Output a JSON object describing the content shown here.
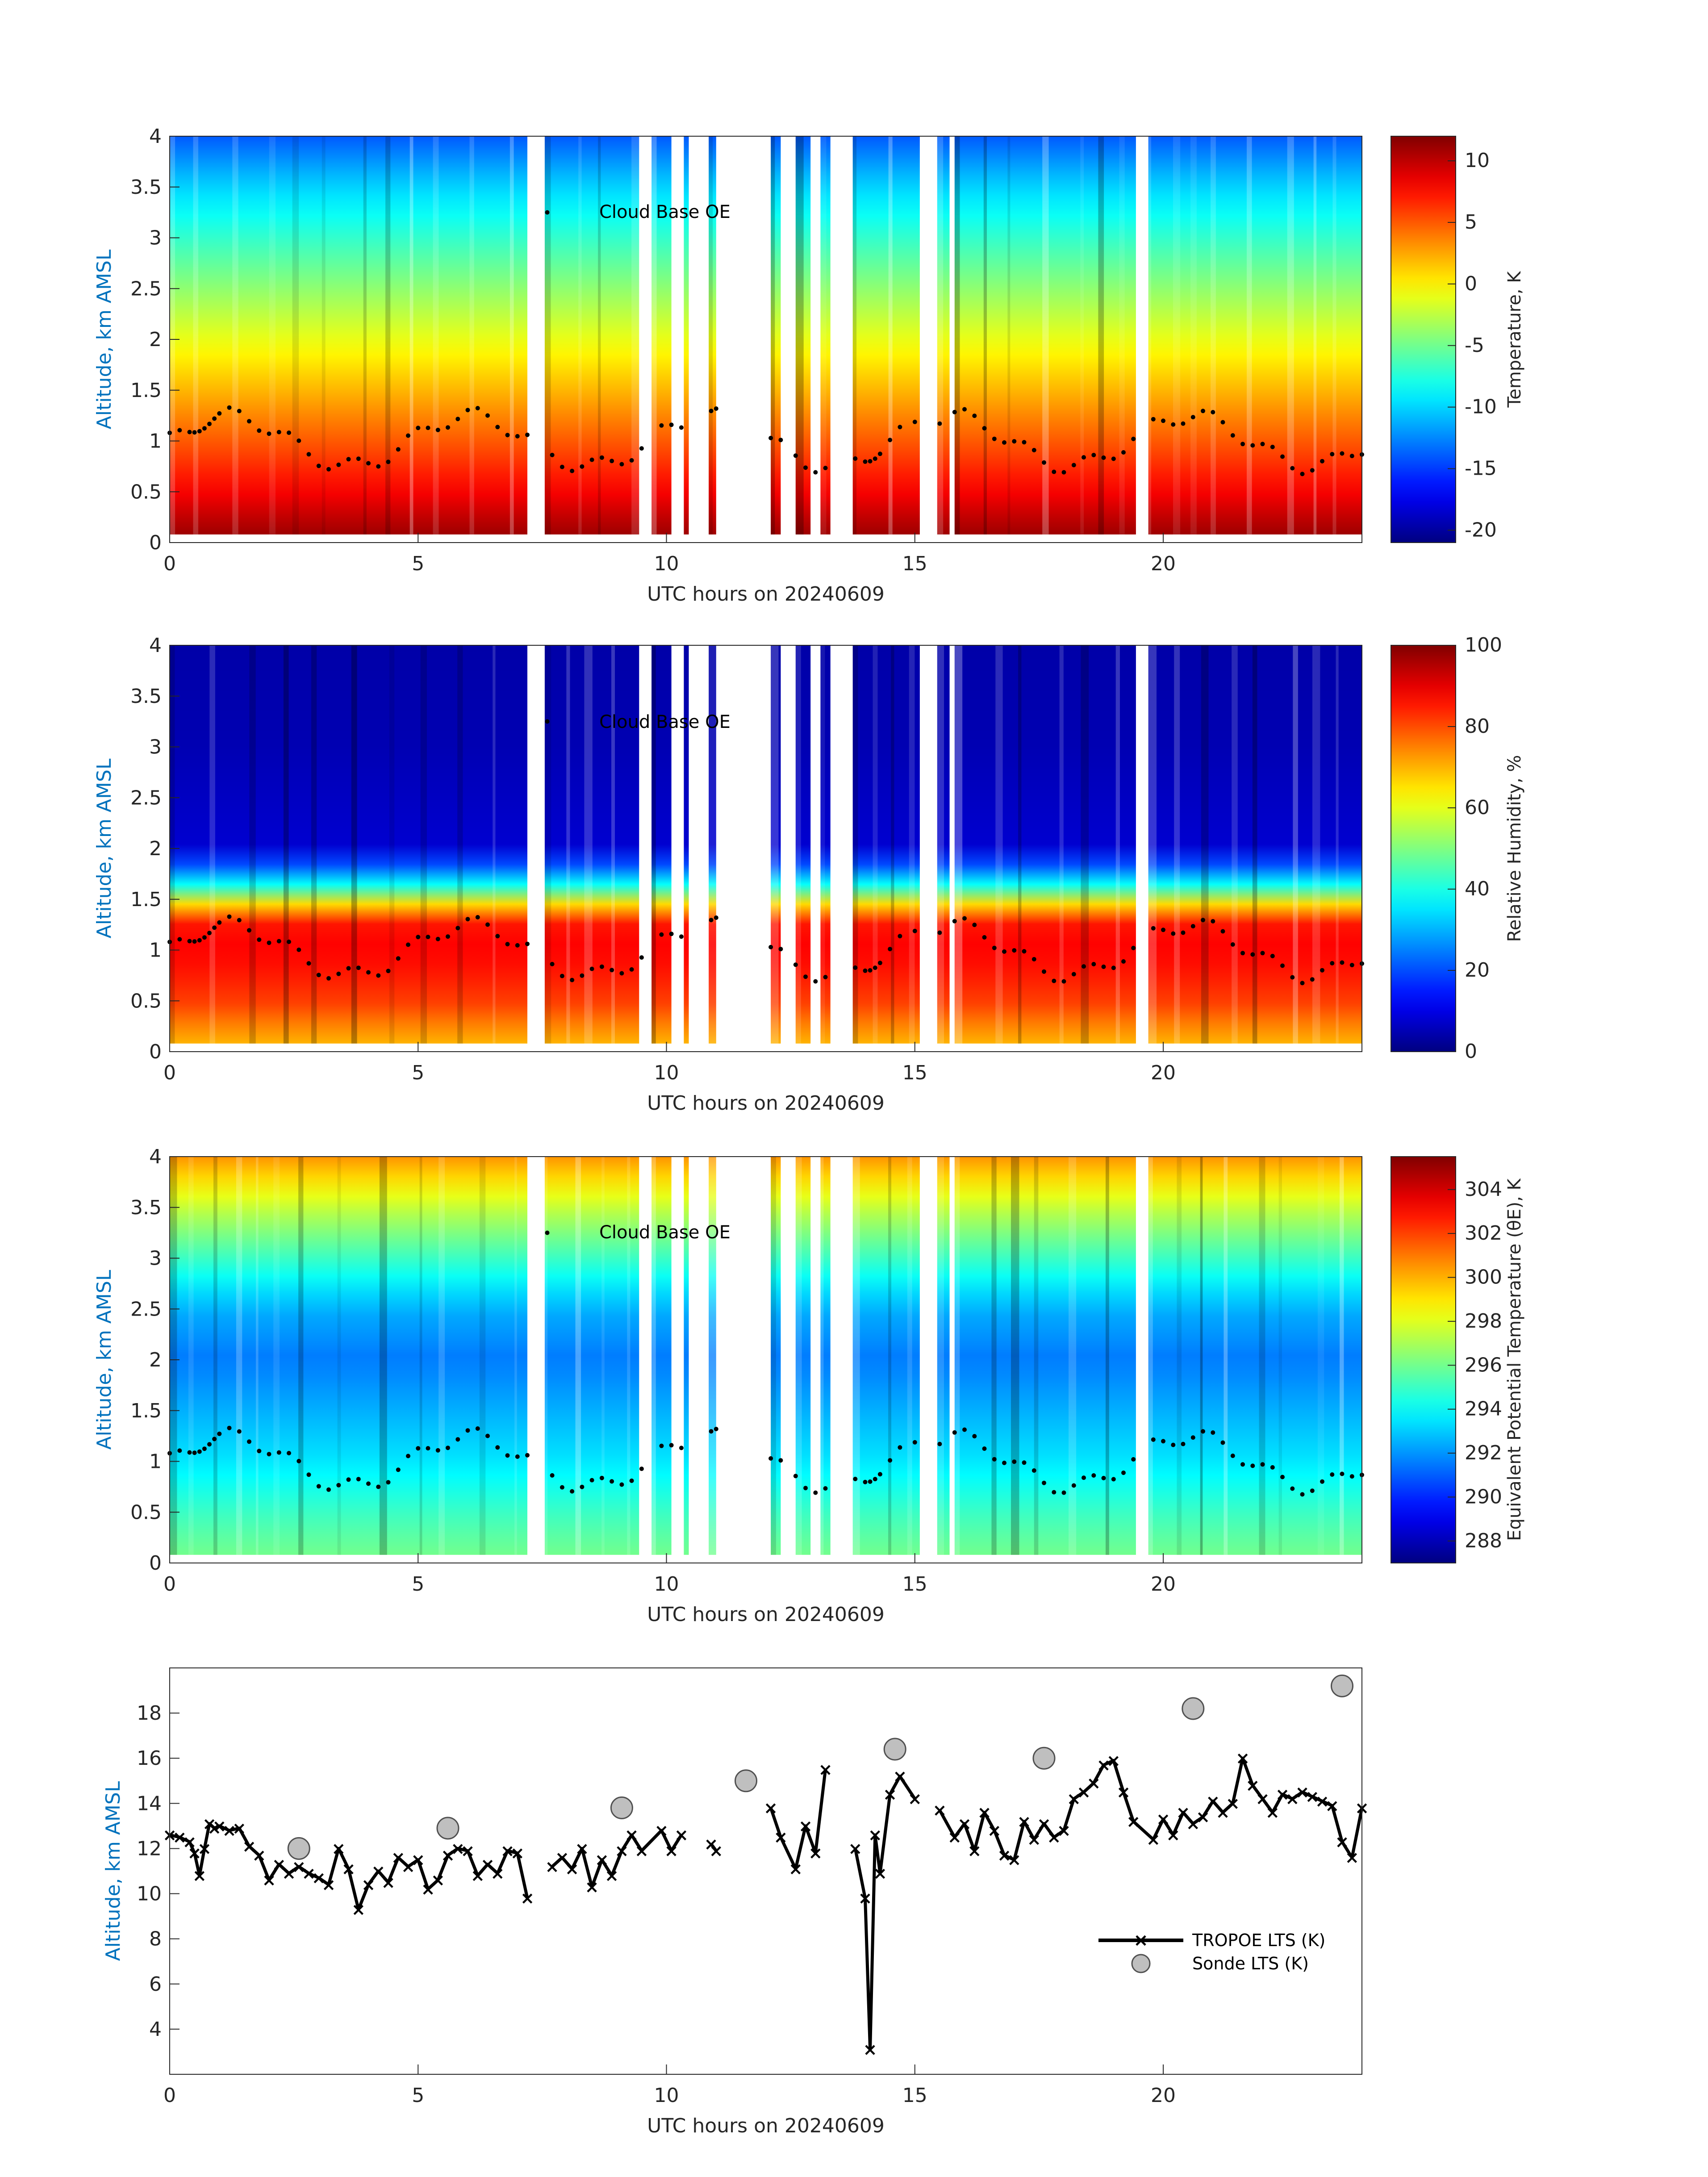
{
  "page": {
    "background": "#ffffff"
  },
  "colors": {
    "y_axis_label": "#0072bd",
    "x_axis_label": "#262626",
    "axis": "#262626",
    "lts_line": "#000000",
    "sonde_fill": "#bfbfbf",
    "sonde_edge": "#505050",
    "cloud_base_points": "#000000"
  },
  "chart_data": [
    {
      "id": "temperature",
      "type": "heatmap",
      "x_name": "UTC hours",
      "xlabel": "UTC hours on 20240609",
      "ylabel": "Altitude, km AMSL",
      "xlim": [
        0,
        24
      ],
      "ylim": [
        0,
        4
      ],
      "xticks": [
        0,
        5,
        10,
        15,
        20
      ],
      "yticks": [
        0,
        0.5,
        1,
        1.5,
        2,
        2.5,
        3,
        3.5,
        4
      ],
      "colormap": "jet",
      "colorbar": {
        "label": "Temperature, K",
        "range": [
          -21,
          12
        ],
        "ticks": [
          -20,
          -15,
          -10,
          -5,
          0,
          5,
          10
        ]
      },
      "profile": {
        "z": [
          0.1,
          0.5,
          1.0,
          1.5,
          2.0,
          2.5,
          3.0,
          3.5,
          4.0
        ],
        "values": [
          11,
          8,
          5,
          2,
          -1,
          -4,
          -7,
          -10,
          -14
        ]
      },
      "annotation": "Cloud Base OE"
    },
    {
      "id": "relative-humidity",
      "type": "heatmap",
      "xlabel": "UTC hours on 20240609",
      "ylabel": "Altitude, km AMSL",
      "xlim": [
        0,
        24
      ],
      "ylim": [
        0,
        4
      ],
      "xticks": [
        0,
        5,
        10,
        15,
        20
      ],
      "yticks": [
        0,
        0.5,
        1,
        1.5,
        2,
        2.5,
        3,
        3.5,
        4
      ],
      "colormap": "jet",
      "colorbar": {
        "label": "Relative Humidity, %",
        "range": [
          0,
          100
        ],
        "ticks": [
          0,
          20,
          40,
          60,
          80,
          100
        ]
      },
      "profile": {
        "z": [
          0.1,
          0.5,
          1.0,
          1.3,
          1.5,
          1.7,
          2.0,
          3.0,
          4.0
        ],
        "values": [
          70,
          82,
          88,
          85,
          60,
          30,
          8,
          5,
          4
        ]
      },
      "annotation": "Cloud Base OE"
    },
    {
      "id": "equivalent-potential-temperature",
      "type": "heatmap",
      "xlabel": "UTC hours on 20240609",
      "ylabel": "Altitude, km AMSL",
      "xlim": [
        0,
        24
      ],
      "ylim": [
        0,
        4
      ],
      "xticks": [
        0,
        5,
        10,
        15,
        20
      ],
      "yticks": [
        0,
        0.5,
        1,
        1.5,
        2,
        2.5,
        3,
        3.5,
        4
      ],
      "colormap": "jet",
      "colorbar": {
        "label": "Equivalent Potential Temperature (θE), K",
        "range": [
          287,
          305.5
        ],
        "ticks": [
          288,
          290,
          292,
          294,
          296,
          298,
          300,
          302,
          304
        ]
      },
      "profile": {
        "z": [
          0.1,
          0.5,
          1.0,
          1.5,
          2.0,
          2.5,
          3.0,
          3.5,
          4.0
        ],
        "values": [
          296,
          295,
          293.5,
          292.5,
          291.5,
          292.5,
          295,
          297.5,
          300.5
        ]
      },
      "annotation": "Cloud Base OE"
    },
    {
      "id": "lts",
      "type": "line",
      "xlabel": "UTC hours on 20240609",
      "ylabel": "Altitude, km AMSL",
      "xlim": [
        0,
        24
      ],
      "ylim": [
        2,
        20
      ],
      "xticks": [
        0,
        5,
        10,
        15,
        20
      ],
      "yticks": [
        4,
        6,
        8,
        10,
        12,
        14,
        16,
        18
      ],
      "legend_position": "bottom-right",
      "series": [
        {
          "name": "TROPOE LTS (K)",
          "marker": "x",
          "x": [
            0.0,
            0.2,
            0.4,
            0.5,
            0.6,
            0.7,
            0.8,
            0.9,
            1.0,
            1.2,
            1.4,
            1.6,
            1.8,
            2.0,
            2.2,
            2.4,
            2.6,
            2.8,
            3.0,
            3.2,
            3.4,
            3.6,
            3.8,
            4.0,
            4.2,
            4.4,
            4.6,
            4.8,
            5.0,
            5.2,
            5.4,
            5.6,
            5.8,
            6.0,
            6.2,
            6.4,
            6.6,
            6.8,
            7.0,
            7.2,
            7.7,
            7.9,
            8.1,
            8.3,
            8.5,
            8.7,
            8.9,
            9.1,
            9.3,
            9.5,
            9.9,
            10.1,
            10.3,
            10.9,
            11.0,
            12.1,
            12.3,
            12.6,
            12.8,
            13.0,
            13.2,
            13.8,
            14.0,
            14.1,
            14.2,
            14.3,
            14.5,
            14.7,
            15.0,
            15.5,
            15.8,
            16.0,
            16.2,
            16.4,
            16.6,
            16.8,
            17.0,
            17.2,
            17.4,
            17.6,
            17.8,
            18.0,
            18.2,
            18.4,
            18.6,
            18.8,
            19.0,
            19.2,
            19.4,
            19.8,
            20.0,
            20.2,
            20.4,
            20.6,
            20.8,
            21.0,
            21.2,
            21.4,
            21.6,
            21.8,
            22.0,
            22.2,
            22.4,
            22.6,
            22.8,
            23.0,
            23.2,
            23.4,
            23.6,
            23.8,
            24.0
          ],
          "y": [
            12.6,
            12.5,
            12.3,
            11.8,
            10.8,
            12.0,
            13.1,
            12.9,
            13.0,
            12.8,
            12.9,
            12.1,
            11.7,
            10.6,
            11.3,
            10.9,
            11.2,
            10.9,
            10.7,
            10.4,
            12.0,
            11.1,
            9.3,
            10.4,
            11.0,
            10.5,
            11.6,
            11.2,
            11.5,
            10.2,
            10.6,
            11.7,
            12.0,
            11.9,
            10.8,
            11.3,
            10.9,
            11.9,
            11.8,
            9.8,
            11.2,
            11.6,
            11.1,
            12.0,
            10.3,
            11.5,
            10.8,
            11.9,
            12.6,
            11.9,
            12.8,
            11.9,
            12.6,
            12.2,
            11.9,
            13.8,
            12.5,
            11.1,
            13.0,
            11.8,
            15.5,
            12.0,
            9.8,
            3.1,
            12.6,
            10.9,
            14.4,
            15.2,
            14.2,
            13.7,
            12.5,
            13.1,
            11.9,
            13.6,
            12.8,
            11.7,
            11.5,
            13.2,
            12.4,
            13.1,
            12.5,
            12.8,
            14.2,
            14.5,
            14.9,
            15.7,
            15.9,
            14.5,
            13.2,
            12.4,
            13.3,
            12.6,
            13.6,
            13.1,
            13.4,
            14.1,
            13.6,
            14.0,
            16.0,
            14.8,
            14.2,
            13.6,
            14.4,
            14.2,
            14.5,
            14.3,
            14.1,
            13.9,
            12.3,
            11.6,
            13.8
          ]
        },
        {
          "name": "Sonde LTS (K)",
          "marker": "o",
          "x": [
            2.6,
            5.6,
            9.1,
            11.6,
            14.6,
            17.6,
            20.6,
            23.6
          ],
          "y": [
            12.0,
            12.9,
            13.8,
            15.0,
            16.4,
            16.0,
            18.2,
            19.2
          ]
        }
      ]
    }
  ]
}
